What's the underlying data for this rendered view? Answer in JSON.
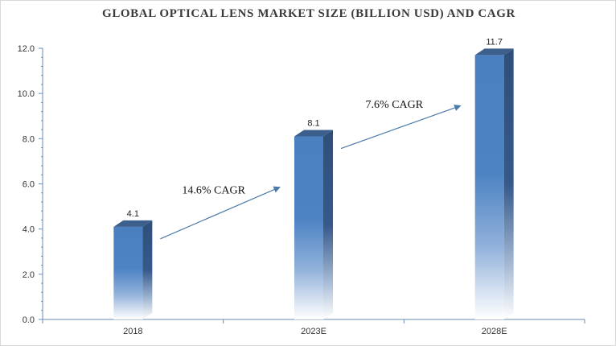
{
  "chart_data": {
    "type": "bar",
    "title": "GLOBAL OPTICAL  LENS MARKET SIZE  (BILLION USD) AND CAGR",
    "categories": [
      "2018",
      "2023E",
      "2028E"
    ],
    "values": [
      4.1,
      8.1,
      11.7
    ],
    "data_labels": [
      "4.1",
      "8.1",
      "11.7"
    ],
    "ylim": [
      0,
      12
    ],
    "yticks": [
      "0.0",
      "2.0",
      "4.0",
      "6.0",
      "8.0",
      "10.0",
      "12.0"
    ],
    "xlabel": "",
    "ylabel": "",
    "grid": false,
    "annotations": [
      {
        "text": "14.6% CAGR",
        "from": "2018",
        "to": "2023E"
      },
      {
        "text": "7.6% CAGR",
        "from": "2023E",
        "to": "2028E"
      }
    ],
    "colors": {
      "bar_top": "#4a7fc0",
      "bar_side": "#2f4f7a",
      "bar_cap": "#3c5f8c",
      "arrow": "#4a7aa8",
      "axis": "#6a8bb5"
    }
  }
}
